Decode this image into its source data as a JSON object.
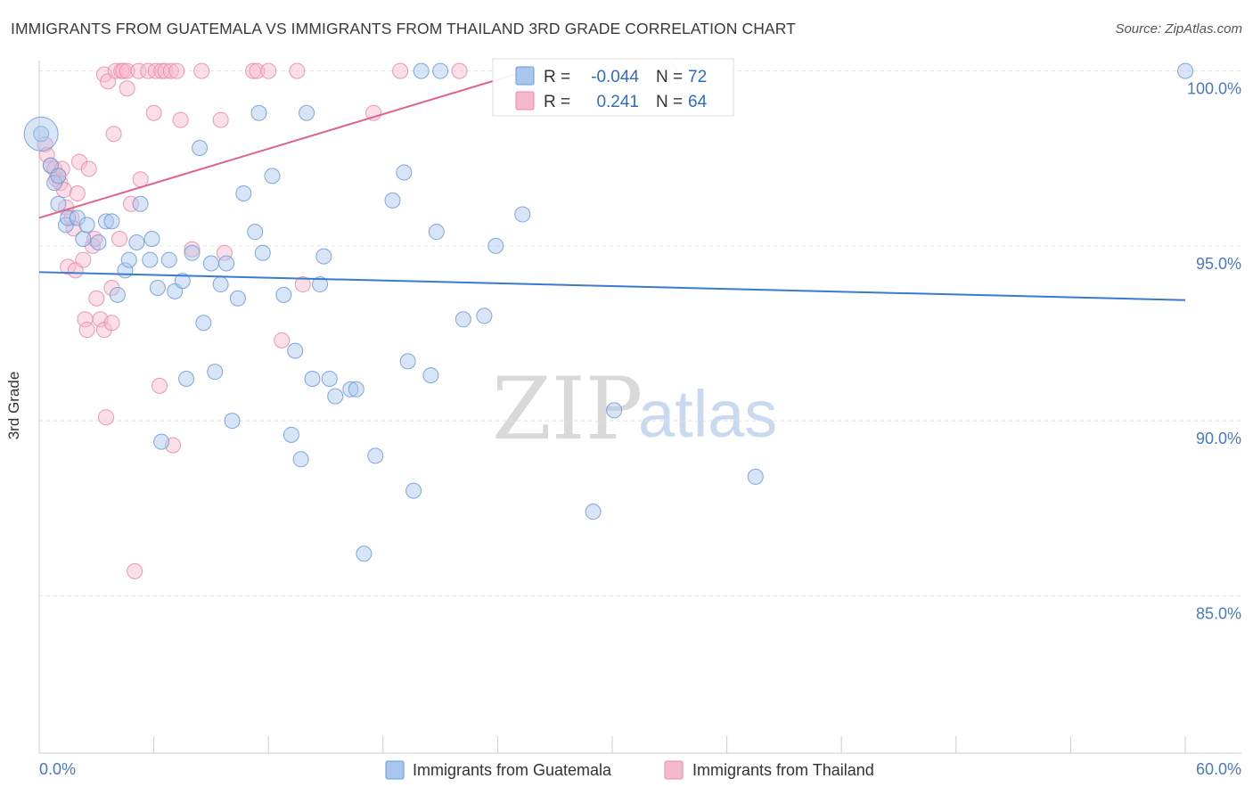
{
  "chart_data": {
    "type": "scatter",
    "title": "IMMIGRANTS FROM GUATEMALA VS IMMIGRANTS FROM THAILAND 3RD GRADE CORRELATION CHART",
    "source": "Source: ZipAtlas.com",
    "ylabel": "3rd Grade",
    "xlabel": "",
    "xlim": [
      0,
      60
    ],
    "ylim": [
      80.5,
      100.5
    ],
    "x_tick_labels": [
      "0.0%",
      "60.0%"
    ],
    "y_tick_labels": [
      "100.0%",
      "95.0%",
      "90.0%",
      "85.0%"
    ],
    "y_tick_values": [
      100,
      95,
      90,
      85
    ],
    "grid": true,
    "legend_position": "bottom",
    "watermark": {
      "zip": "ZIP",
      "atlas": "atlas"
    },
    "stats": {
      "r_label": "R =",
      "n_label": "N =",
      "rows": [
        {
          "r": "-0.044",
          "n": "72"
        },
        {
          "r": "0.241",
          "n": "64"
        }
      ]
    },
    "colors": {
      "guatemala_fill": "#a9c6ee",
      "guatemala_stroke": "#6b9ad8",
      "guatemala_line": "#3a7bd0",
      "thailand_fill": "#f6b9cc",
      "thailand_stroke": "#e98aa8",
      "thailand_line": "#e0628d",
      "value_text": "#2f6bc4"
    },
    "series": [
      {
        "name": "Immigrants from Guatemala",
        "trend": {
          "x": [
            0,
            60
          ],
          "y": [
            94.25,
            93.45
          ]
        },
        "points": [
          [
            0.1,
            98.2
          ],
          [
            0.6,
            97.3
          ],
          [
            0.8,
            96.8
          ],
          [
            1.0,
            96.2
          ],
          [
            1.4,
            95.6
          ],
          [
            1.5,
            95.8
          ],
          [
            2.0,
            95.8
          ],
          [
            2.3,
            95.2
          ],
          [
            2.5,
            95.6
          ],
          [
            3.1,
            95.1
          ],
          [
            3.5,
            95.7
          ],
          [
            3.8,
            95.7
          ],
          [
            4.1,
            93.6
          ],
          [
            4.5,
            94.3
          ],
          [
            4.7,
            94.6
          ],
          [
            5.1,
            95.1
          ],
          [
            5.3,
            96.2
          ],
          [
            5.8,
            94.6
          ],
          [
            5.9,
            95.2
          ],
          [
            6.2,
            93.8
          ],
          [
            6.4,
            89.4
          ],
          [
            6.8,
            94.6
          ],
          [
            7.1,
            93.7
          ],
          [
            7.5,
            94.0
          ],
          [
            7.7,
            91.2
          ],
          [
            8.0,
            94.8
          ],
          [
            8.4,
            97.8
          ],
          [
            8.6,
            92.8
          ],
          [
            9.0,
            94.5
          ],
          [
            9.2,
            91.4
          ],
          [
            9.5,
            93.9
          ],
          [
            9.8,
            94.5
          ],
          [
            10.1,
            90.0
          ],
          [
            10.4,
            93.5
          ],
          [
            10.7,
            96.5
          ],
          [
            11.3,
            95.4
          ],
          [
            11.5,
            98.8
          ],
          [
            11.7,
            94.8
          ],
          [
            12.2,
            97.0
          ],
          [
            12.8,
            93.6
          ],
          [
            13.2,
            89.6
          ],
          [
            13.4,
            92.0
          ],
          [
            13.7,
            88.9
          ],
          [
            14.0,
            98.8
          ],
          [
            14.3,
            91.2
          ],
          [
            14.7,
            93.9
          ],
          [
            14.9,
            94.7
          ],
          [
            15.2,
            91.2
          ],
          [
            15.5,
            90.7
          ],
          [
            16.3,
            90.9
          ],
          [
            16.6,
            90.9
          ],
          [
            17.0,
            86.2
          ],
          [
            17.6,
            89.0
          ],
          [
            18.5,
            96.3
          ],
          [
            19.1,
            97.1
          ],
          [
            19.3,
            91.7
          ],
          [
            19.6,
            88.0
          ],
          [
            20.0,
            100.0
          ],
          [
            20.5,
            91.3
          ],
          [
            20.8,
            95.4
          ],
          [
            21.0,
            100.0
          ],
          [
            22.2,
            92.9
          ],
          [
            23.3,
            93.0
          ],
          [
            23.9,
            95.0
          ],
          [
            25.3,
            95.9
          ],
          [
            29.0,
            87.4
          ],
          [
            30.1,
            90.3
          ],
          [
            33.0,
            100.0
          ],
          [
            34.3,
            100.0
          ],
          [
            37.5,
            88.4
          ],
          [
            60.0,
            100.0
          ],
          [
            1.0,
            97.0
          ]
        ],
        "big_point": [
          0.1,
          98.2
        ]
      },
      {
        "name": "Immigrants from Thailand",
        "trend": {
          "x": [
            0,
            25.5
          ],
          "y": [
            95.8,
            100.0
          ]
        },
        "points": [
          [
            0.3,
            97.9
          ],
          [
            0.4,
            97.6
          ],
          [
            0.6,
            97.3
          ],
          [
            0.8,
            97.2
          ],
          [
            0.9,
            96.9
          ],
          [
            1.1,
            96.8
          ],
          [
            1.2,
            97.2
          ],
          [
            1.3,
            96.6
          ],
          [
            1.4,
            96.1
          ],
          [
            1.5,
            94.4
          ],
          [
            1.7,
            95.8
          ],
          [
            1.8,
            95.5
          ],
          [
            1.9,
            94.3
          ],
          [
            2.0,
            96.5
          ],
          [
            2.1,
            97.4
          ],
          [
            2.3,
            94.6
          ],
          [
            2.4,
            92.9
          ],
          [
            2.5,
            92.6
          ],
          [
            2.6,
            97.2
          ],
          [
            2.8,
            95.0
          ],
          [
            2.9,
            95.2
          ],
          [
            3.0,
            93.5
          ],
          [
            3.2,
            92.9
          ],
          [
            3.4,
            92.6
          ],
          [
            3.4,
            99.9
          ],
          [
            3.5,
            90.1
          ],
          [
            3.6,
            99.7
          ],
          [
            3.8,
            92.8
          ],
          [
            3.8,
            93.8
          ],
          [
            3.9,
            98.2
          ],
          [
            4.0,
            100.0
          ],
          [
            4.2,
            95.2
          ],
          [
            4.3,
            100.0
          ],
          [
            4.4,
            100.0
          ],
          [
            4.6,
            100.0
          ],
          [
            4.6,
            99.5
          ],
          [
            4.8,
            96.2
          ],
          [
            5.0,
            85.7
          ],
          [
            5.2,
            100.0
          ],
          [
            5.3,
            96.9
          ],
          [
            5.7,
            100.0
          ],
          [
            6.0,
            98.8
          ],
          [
            6.1,
            100.0
          ],
          [
            6.3,
            91.0
          ],
          [
            6.4,
            100.0
          ],
          [
            6.6,
            100.0
          ],
          [
            6.9,
            100.0
          ],
          [
            7.0,
            89.3
          ],
          [
            7.2,
            100.0
          ],
          [
            7.4,
            98.6
          ],
          [
            8.0,
            94.9
          ],
          [
            8.5,
            100.0
          ],
          [
            9.5,
            98.6
          ],
          [
            9.7,
            94.8
          ],
          [
            11.2,
            100.0
          ],
          [
            11.4,
            100.0
          ],
          [
            12.0,
            100.0
          ],
          [
            12.7,
            92.3
          ],
          [
            13.5,
            100.0
          ],
          [
            13.8,
            93.9
          ],
          [
            17.5,
            98.8
          ],
          [
            18.9,
            100.0
          ],
          [
            22.0,
            100.0
          ],
          [
            1.0,
            97.0
          ]
        ]
      }
    ]
  }
}
